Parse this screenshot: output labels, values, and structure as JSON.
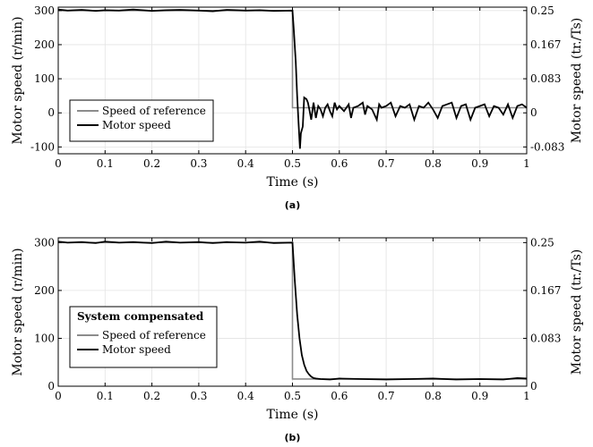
{
  "chart_data": [
    {
      "type": "line",
      "panel_label": "(a)",
      "xlabel": "Time (s)",
      "ylabel": "Motor speed (r/min)",
      "ylabel_right": "Motor speed (tr./Ts)",
      "xlim": [
        0,
        1
      ],
      "ylim": [
        -120,
        310
      ],
      "xticks": [
        0,
        0.1,
        0.2,
        0.3,
        0.4,
        0.5,
        0.6,
        0.7,
        0.8,
        0.9,
        1
      ],
      "xtick_labels": [
        "0",
        "0.1",
        "0.2",
        "0.3",
        "0.4",
        "0.5",
        "0.6",
        "0.7",
        "0.8",
        "0.9",
        "1"
      ],
      "yticks": [
        -100,
        0,
        100,
        200,
        300
      ],
      "ytick_labels": [
        "-100",
        "0",
        "100",
        "200",
        "300"
      ],
      "yticks_right": [
        -100,
        0,
        100,
        200,
        300
      ],
      "ytick_labels_right": [
        "-0.083",
        "0",
        "0.083",
        "0.167",
        "0.25"
      ],
      "grid": true,
      "legend_position": "lower-left",
      "legend_title": "",
      "series": [
        {
          "name": "Speed of reference",
          "color": "#8c8c8c",
          "x": [
            0,
            0.5,
            0.5,
            0.51,
            1.0
          ],
          "y": [
            300,
            300,
            15,
            15,
            15
          ]
        },
        {
          "name": "Motor speed",
          "color": "#000000",
          "x": [
            0,
            0.02,
            0.05,
            0.08,
            0.1,
            0.13,
            0.16,
            0.2,
            0.23,
            0.26,
            0.3,
            0.33,
            0.36,
            0.4,
            0.43,
            0.46,
            0.5,
            0.503,
            0.507,
            0.51,
            0.513,
            0.516,
            0.518,
            0.52,
            0.522,
            0.525,
            0.53,
            0.533,
            0.536,
            0.54,
            0.545,
            0.55,
            0.555,
            0.56,
            0.565,
            0.57,
            0.575,
            0.58,
            0.585,
            0.59,
            0.595,
            0.6,
            0.61,
            0.62,
            0.625,
            0.63,
            0.64,
            0.65,
            0.655,
            0.66,
            0.67,
            0.68,
            0.685,
            0.69,
            0.7,
            0.71,
            0.72,
            0.73,
            0.74,
            0.75,
            0.76,
            0.77,
            0.78,
            0.79,
            0.8,
            0.81,
            0.82,
            0.83,
            0.84,
            0.85,
            0.86,
            0.87,
            0.88,
            0.89,
            0.9,
            0.91,
            0.92,
            0.93,
            0.94,
            0.95,
            0.96,
            0.97,
            0.98,
            0.99,
            1.0
          ],
          "y": [
            303,
            300,
            302,
            299,
            301,
            300,
            303,
            299,
            301,
            302,
            300,
            298,
            302,
            300,
            301,
            299,
            300,
            240,
            150,
            50,
            -30,
            -105,
            -60,
            -50,
            -40,
            45,
            40,
            30,
            10,
            -20,
            30,
            -15,
            20,
            10,
            -10,
            15,
            25,
            5,
            -10,
            30,
            10,
            20,
            5,
            25,
            -15,
            15,
            20,
            30,
            -5,
            20,
            10,
            -20,
            25,
            15,
            20,
            30,
            -10,
            20,
            15,
            25,
            -20,
            20,
            15,
            30,
            10,
            -15,
            20,
            25,
            30,
            -15,
            20,
            25,
            -20,
            15,
            20,
            25,
            -10,
            20,
            15,
            -5,
            25,
            -15,
            20,
            25,
            15
          ]
        }
      ]
    },
    {
      "type": "line",
      "panel_label": "(b)",
      "xlabel": "Time (s)",
      "ylabel": "Motor speed (r/min)",
      "ylabel_right": "Motor speed (tr./Ts)",
      "xlim": [
        0,
        1
      ],
      "ylim": [
        0,
        310
      ],
      "xticks": [
        0,
        0.1,
        0.2,
        0.3,
        0.4,
        0.5,
        0.6,
        0.7,
        0.8,
        0.9,
        1
      ],
      "xtick_labels": [
        "0",
        "0.1",
        "0.2",
        "0.3",
        "0.4",
        "0.5",
        "0.6",
        "0.7",
        "0.8",
        "0.9",
        "1"
      ],
      "yticks": [
        0,
        100,
        200,
        300
      ],
      "ytick_labels": [
        "0",
        "100",
        "200",
        "300"
      ],
      "yticks_right": [
        0,
        100,
        200,
        300
      ],
      "ytick_labels_right": [
        "0",
        "0.083",
        "0.167",
        "0.25"
      ],
      "grid": true,
      "legend_position": "lower-left",
      "legend_title": "System compensated",
      "series": [
        {
          "name": "Speed of reference",
          "color": "#8c8c8c",
          "x": [
            0,
            0.5,
            0.5,
            0.51,
            1.0
          ],
          "y": [
            300,
            300,
            15,
            15,
            15
          ]
        },
        {
          "name": "Motor speed",
          "color": "#000000",
          "x": [
            0,
            0.02,
            0.05,
            0.08,
            0.1,
            0.13,
            0.16,
            0.2,
            0.23,
            0.26,
            0.3,
            0.33,
            0.36,
            0.4,
            0.43,
            0.46,
            0.5,
            0.505,
            0.51,
            0.515,
            0.52,
            0.525,
            0.53,
            0.535,
            0.54,
            0.545,
            0.55,
            0.56,
            0.58,
            0.6,
            0.65,
            0.7,
            0.75,
            0.8,
            0.85,
            0.9,
            0.95,
            0.98,
            1.0
          ],
          "y": [
            302,
            300,
            301,
            299,
            302,
            300,
            301,
            299,
            302,
            300,
            301,
            299,
            301,
            300,
            302,
            299,
            300,
            220,
            150,
            100,
            65,
            45,
            32,
            25,
            20,
            17,
            16,
            15,
            14,
            16,
            15,
            14,
            15,
            16,
            14,
            15,
            14,
            17,
            16
          ]
        }
      ]
    }
  ]
}
